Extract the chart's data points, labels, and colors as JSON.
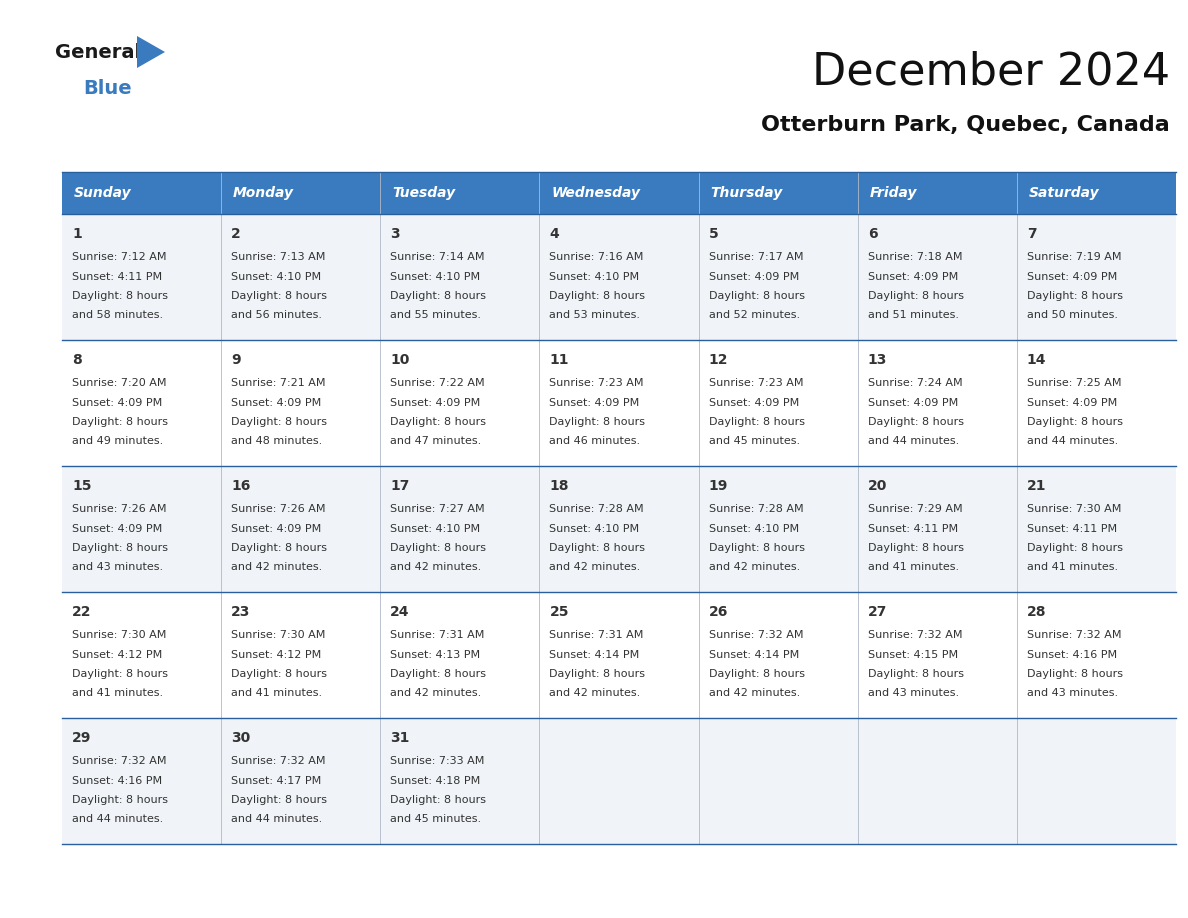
{
  "title": "December 2024",
  "subtitle": "Otterburn Park, Quebec, Canada",
  "header_bg": "#3a7bbf",
  "header_text": "#ffffff",
  "border_color": "#2a5f9e",
  "text_color": "#333333",
  "days_of_week": [
    "Sunday",
    "Monday",
    "Tuesday",
    "Wednesday",
    "Thursday",
    "Friday",
    "Saturday"
  ],
  "weeks": [
    [
      {
        "day": 1,
        "sunrise": "7:12 AM",
        "sunset": "4:11 PM",
        "daylight_hours": 8,
        "daylight_minutes": 58
      },
      {
        "day": 2,
        "sunrise": "7:13 AM",
        "sunset": "4:10 PM",
        "daylight_hours": 8,
        "daylight_minutes": 56
      },
      {
        "day": 3,
        "sunrise": "7:14 AM",
        "sunset": "4:10 PM",
        "daylight_hours": 8,
        "daylight_minutes": 55
      },
      {
        "day": 4,
        "sunrise": "7:16 AM",
        "sunset": "4:10 PM",
        "daylight_hours": 8,
        "daylight_minutes": 53
      },
      {
        "day": 5,
        "sunrise": "7:17 AM",
        "sunset": "4:09 PM",
        "daylight_hours": 8,
        "daylight_minutes": 52
      },
      {
        "day": 6,
        "sunrise": "7:18 AM",
        "sunset": "4:09 PM",
        "daylight_hours": 8,
        "daylight_minutes": 51
      },
      {
        "day": 7,
        "sunrise": "7:19 AM",
        "sunset": "4:09 PM",
        "daylight_hours": 8,
        "daylight_minutes": 50
      }
    ],
    [
      {
        "day": 8,
        "sunrise": "7:20 AM",
        "sunset": "4:09 PM",
        "daylight_hours": 8,
        "daylight_minutes": 49
      },
      {
        "day": 9,
        "sunrise": "7:21 AM",
        "sunset": "4:09 PM",
        "daylight_hours": 8,
        "daylight_minutes": 48
      },
      {
        "day": 10,
        "sunrise": "7:22 AM",
        "sunset": "4:09 PM",
        "daylight_hours": 8,
        "daylight_minutes": 47
      },
      {
        "day": 11,
        "sunrise": "7:23 AM",
        "sunset": "4:09 PM",
        "daylight_hours": 8,
        "daylight_minutes": 46
      },
      {
        "day": 12,
        "sunrise": "7:23 AM",
        "sunset": "4:09 PM",
        "daylight_hours": 8,
        "daylight_minutes": 45
      },
      {
        "day": 13,
        "sunrise": "7:24 AM",
        "sunset": "4:09 PM",
        "daylight_hours": 8,
        "daylight_minutes": 44
      },
      {
        "day": 14,
        "sunrise": "7:25 AM",
        "sunset": "4:09 PM",
        "daylight_hours": 8,
        "daylight_minutes": 44
      }
    ],
    [
      {
        "day": 15,
        "sunrise": "7:26 AM",
        "sunset": "4:09 PM",
        "daylight_hours": 8,
        "daylight_minutes": 43
      },
      {
        "day": 16,
        "sunrise": "7:26 AM",
        "sunset": "4:09 PM",
        "daylight_hours": 8,
        "daylight_minutes": 42
      },
      {
        "day": 17,
        "sunrise": "7:27 AM",
        "sunset": "4:10 PM",
        "daylight_hours": 8,
        "daylight_minutes": 42
      },
      {
        "day": 18,
        "sunrise": "7:28 AM",
        "sunset": "4:10 PM",
        "daylight_hours": 8,
        "daylight_minutes": 42
      },
      {
        "day": 19,
        "sunrise": "7:28 AM",
        "sunset": "4:10 PM",
        "daylight_hours": 8,
        "daylight_minutes": 42
      },
      {
        "day": 20,
        "sunrise": "7:29 AM",
        "sunset": "4:11 PM",
        "daylight_hours": 8,
        "daylight_minutes": 41
      },
      {
        "day": 21,
        "sunrise": "7:30 AM",
        "sunset": "4:11 PM",
        "daylight_hours": 8,
        "daylight_minutes": 41
      }
    ],
    [
      {
        "day": 22,
        "sunrise": "7:30 AM",
        "sunset": "4:12 PM",
        "daylight_hours": 8,
        "daylight_minutes": 41
      },
      {
        "day": 23,
        "sunrise": "7:30 AM",
        "sunset": "4:12 PM",
        "daylight_hours": 8,
        "daylight_minutes": 41
      },
      {
        "day": 24,
        "sunrise": "7:31 AM",
        "sunset": "4:13 PM",
        "daylight_hours": 8,
        "daylight_minutes": 42
      },
      {
        "day": 25,
        "sunrise": "7:31 AM",
        "sunset": "4:14 PM",
        "daylight_hours": 8,
        "daylight_minutes": 42
      },
      {
        "day": 26,
        "sunrise": "7:32 AM",
        "sunset": "4:14 PM",
        "daylight_hours": 8,
        "daylight_minutes": 42
      },
      {
        "day": 27,
        "sunrise": "7:32 AM",
        "sunset": "4:15 PM",
        "daylight_hours": 8,
        "daylight_minutes": 43
      },
      {
        "day": 28,
        "sunrise": "7:32 AM",
        "sunset": "4:16 PM",
        "daylight_hours": 8,
        "daylight_minutes": 43
      }
    ],
    [
      {
        "day": 29,
        "sunrise": "7:32 AM",
        "sunset": "4:16 PM",
        "daylight_hours": 8,
        "daylight_minutes": 44
      },
      {
        "day": 30,
        "sunrise": "7:32 AM",
        "sunset": "4:17 PM",
        "daylight_hours": 8,
        "daylight_minutes": 44
      },
      {
        "day": 31,
        "sunrise": "7:33 AM",
        "sunset": "4:18 PM",
        "daylight_hours": 8,
        "daylight_minutes": 45
      },
      null,
      null,
      null,
      null
    ]
  ],
  "fig_width": 11.88,
  "fig_height": 9.18,
  "dpi": 100,
  "title_fontsize": 32,
  "subtitle_fontsize": 16,
  "header_fontsize": 10,
  "day_num_fontsize": 10,
  "cell_text_fontsize": 8,
  "logo_general_fontsize": 14,
  "logo_blue_fontsize": 14
}
